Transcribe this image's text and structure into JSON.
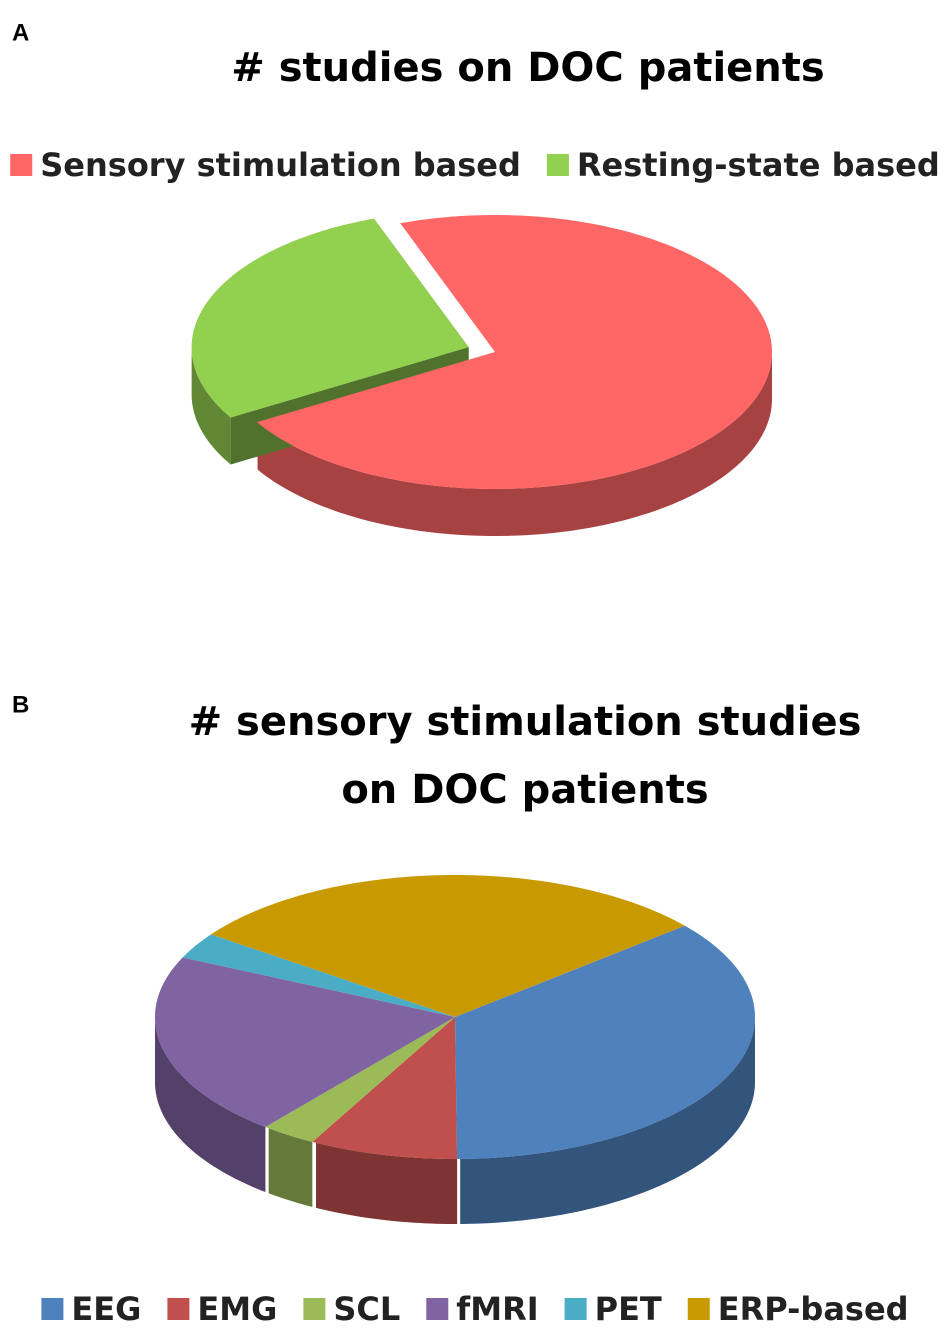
{
  "chart_data": [
    {
      "type": "pie3d",
      "panel": "A",
      "title": [
        "# studies on DOC patients"
      ],
      "legend": "top",
      "explode": [
        0,
        1
      ],
      "categories": [
        "Sensory stimulation based",
        "Resting-state based"
      ],
      "values": [
        72,
        28
      ],
      "colors": [
        "#ff6666",
        "#92d050"
      ]
    },
    {
      "type": "pie3d",
      "panel": "B",
      "title": [
        "# sensory stimulation studies",
        "on DOC patients"
      ],
      "legend": "bottom",
      "explode": [
        0,
        0,
        0,
        0,
        0,
        0
      ],
      "categories": [
        "EEG",
        "EMG",
        "SCL",
        "fMRI",
        "PET",
        "ERP-based"
      ],
      "values": [
        36,
        8,
        3,
        21,
        3,
        29
      ],
      "colors": [
        "#4f81bd",
        "#c0504d",
        "#9bbb59",
        "#8064a2",
        "#4bacc6",
        "#c99a00"
      ]
    }
  ]
}
